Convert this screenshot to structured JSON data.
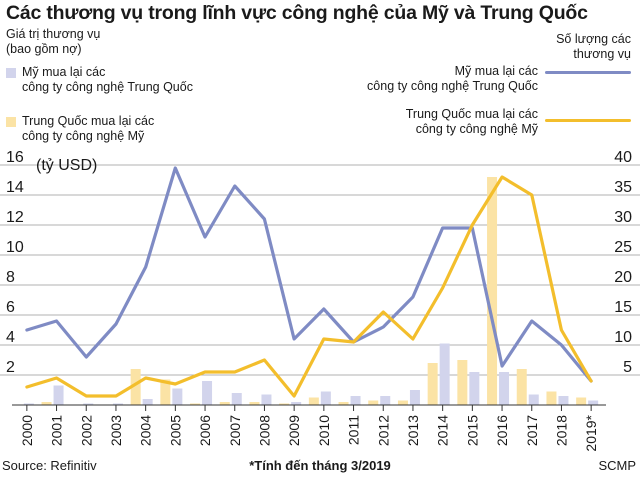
{
  "title": "Các thương vụ trong lĩnh vực công nghệ của Mỹ và Trung Quốc",
  "left_axis_label_1": "Giá trị thương vụ",
  "left_axis_label_2": "(bao gồm nợ)",
  "right_axis_label_1": "Số lượng các",
  "right_axis_label_2": "thương vụ",
  "unit_label": "(tỷ USD)",
  "legend": {
    "us_bar_1": "Mỹ mua lại các",
    "us_bar_2": "công ty công nghệ Trung Quốc",
    "cn_bar_1": "Trung Quốc mua lại các",
    "cn_bar_2": "công ty công nghệ Mỹ",
    "us_line_1": "Mỹ mua lại các",
    "us_line_2": "công ty công nghệ Trung Quốc",
    "cn_line_1": "Trung Quốc mua lại các",
    "cn_line_2": "công ty công nghệ Mỹ"
  },
  "colors": {
    "us_line": "#7f8bc4",
    "cn_line": "#f3be2c",
    "us_bar": "#d2d4ec",
    "cn_bar": "#fbe3a5",
    "grid": "#999999"
  },
  "footer": {
    "source": "Source: Refinitiv",
    "note": "*Tính đến tháng 3/2019",
    "brand": "SCMP"
  },
  "chart_data": {
    "type": "bar+line",
    "categories": [
      "2000",
      "2001",
      "2002",
      "2003",
      "2004",
      "2005",
      "2006",
      "2007",
      "2008",
      "2009",
      "2010",
      "2011",
      "2012",
      "2013",
      "2014",
      "2015",
      "2016",
      "2017",
      "2018",
      "2019*"
    ],
    "left_axis": {
      "label": "(tỷ USD)",
      "ylim": [
        0,
        17
      ],
      "ticks": [
        2,
        4,
        6,
        8,
        10,
        12,
        14,
        16
      ]
    },
    "right_axis": {
      "label": "Số lượng các thương vụ",
      "ylim": [
        0,
        42.5
      ],
      "ticks": [
        5,
        10,
        15,
        20,
        25,
        30,
        35,
        40
      ]
    },
    "bar_series": [
      {
        "name": "Mỹ mua lại các công ty công nghệ Trung Quốc",
        "axis": "left",
        "values": [
          0.1,
          1.3,
          0.1,
          0.1,
          0.4,
          1.1,
          1.6,
          0.8,
          0.7,
          0.2,
          0.9,
          0.6,
          0.6,
          1.0,
          4.1,
          2.2,
          2.2,
          0.7,
          0.6,
          0.3
        ]
      },
      {
        "name": "Trung Quốc mua lại các công ty công nghệ Mỹ",
        "axis": "left",
        "values": [
          0.0,
          0.2,
          0.0,
          0.0,
          2.4,
          1.7,
          0.1,
          0.2,
          0.2,
          0.1,
          0.5,
          0.2,
          0.3,
          0.3,
          2.8,
          3.0,
          15.2,
          2.4,
          0.9,
          0.5
        ]
      }
    ],
    "line_series": [
      {
        "name": "Mỹ mua lại các công ty công nghệ Trung Quốc",
        "axis": "right",
        "values": [
          12.5,
          14,
          8,
          13.5,
          23,
          39.5,
          28,
          36.5,
          31,
          11,
          16,
          10.5,
          13,
          18,
          29.5,
          29.5,
          6.5,
          14,
          10,
          4
        ]
      },
      {
        "name": "Trung Quốc mua lại các công ty công nghệ Mỹ",
        "axis": "right",
        "values": [
          3,
          4.5,
          1.5,
          1.5,
          4.5,
          3.5,
          5.5,
          5.5,
          7.5,
          1.5,
          11,
          10.5,
          15.5,
          11,
          19.5,
          30,
          38,
          35,
          12.5,
          4
        ]
      }
    ],
    "grid": true
  }
}
